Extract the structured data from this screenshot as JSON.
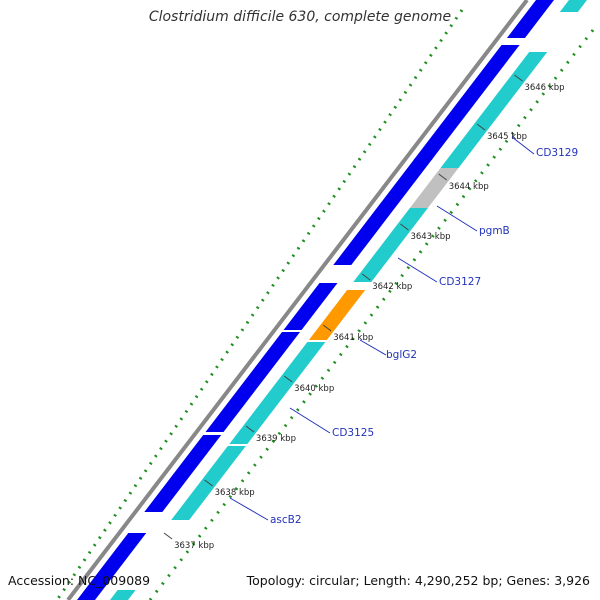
{
  "title": "Clostridium difficile 630, complete genome",
  "footer": {
    "accession": "Accession: NC_009089",
    "summary": "Topology: circular; Length: 4,290,252 bp; Genes: 3,926"
  },
  "colors": {
    "forward_cds": "#0000ee",
    "reverse_cds": "#22cccc",
    "rna": "#ff9900",
    "other": "#c0c0c0",
    "backbone": "#888888",
    "gc_dots": "#1f8f1f",
    "label_line": "#2233bb"
  },
  "ticks": [
    {
      "label": "3637 kbp"
    },
    {
      "label": "3638 kbp"
    },
    {
      "label": "3639 kbp"
    },
    {
      "label": "3640 kbp"
    },
    {
      "label": "3641 kbp"
    },
    {
      "label": "3642 kbp"
    },
    {
      "label": "3643 kbp"
    },
    {
      "label": "3644 kbp"
    },
    {
      "label": "3645 kbp"
    },
    {
      "label": "3646 kbp"
    }
  ],
  "gene_labels": [
    {
      "name": "ascB2"
    },
    {
      "name": "CD3125"
    },
    {
      "name": "bglG2"
    },
    {
      "name": "CD3127"
    },
    {
      "name": "pgmB"
    },
    {
      "name": "CD3129"
    }
  ]
}
